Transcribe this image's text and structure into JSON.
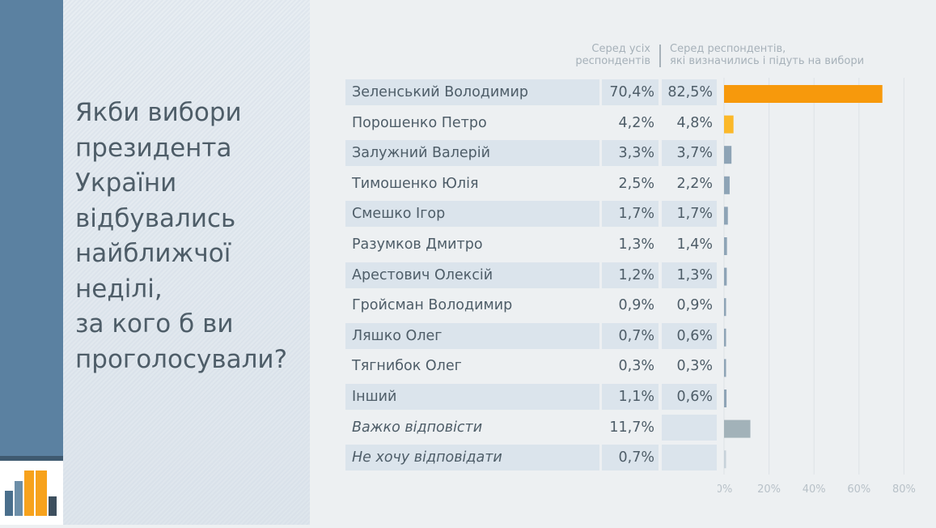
{
  "question": "Якби вибори\nпрезидента\nУкраїни\nвідбувались\nнайближчої\nнеділі,\nза кого б ви\nпроголосували?",
  "column_headers": {
    "all": "Серед усіх\nреспондентів",
    "decided": "Серед респондентів,\nякі визначились і підуть на вибори"
  },
  "colors": {
    "top": "#f7990c",
    "second": "#fbb829",
    "others": "#8ea4b6",
    "hard": "#a2b2b9",
    "no_answer": "#c7d2da"
  },
  "chart_data": {
    "type": "bar",
    "orientation": "horizontal",
    "categories": [
      "Зеленський Володимир",
      "Порошенко Петро",
      "Залужний Валерій",
      "Тимошенко Юлія",
      "Смешко Ігор",
      "Разумков Дмитро",
      "Арестович Олексій",
      "Гройсман Володимир",
      "Ляшко Олег",
      "Тягнибок Олег",
      "Інший",
      "Важко відповісти",
      "Не хочу відповідати"
    ],
    "series": [
      {
        "name": "Серед усіх респондентів",
        "values": [
          70.4,
          4.2,
          3.3,
          2.5,
          1.7,
          1.3,
          1.2,
          0.9,
          0.7,
          0.3,
          1.1,
          11.7,
          0.7
        ]
      },
      {
        "name": "Серед респондентів, які визначились і підуть на вибори",
        "values": [
          82.5,
          4.8,
          3.7,
          2.2,
          1.7,
          1.4,
          1.3,
          0.9,
          0.6,
          0.3,
          0.6,
          null,
          null
        ]
      }
    ],
    "labels_all": [
      "70,4%",
      "4,2%",
      "3,3%",
      "2,5%",
      "1,7%",
      "1,3%",
      "1,2%",
      "0,9%",
      "0,7%",
      "0,3%",
      "1,1%",
      "11,7%",
      "0,7%"
    ],
    "labels_decided": [
      "82,5%",
      "4,8%",
      "3,7%",
      "2,2%",
      "1,7%",
      "1,4%",
      "1,3%",
      "0,9%",
      "0,6%",
      "0,3%",
      "0,6%",
      "",
      ""
    ],
    "italic_rows": [
      11,
      12
    ],
    "xlim": [
      0,
      80
    ],
    "xticks": [
      "0%",
      "20%",
      "40%",
      "60%",
      "80%"
    ],
    "grid": true
  }
}
